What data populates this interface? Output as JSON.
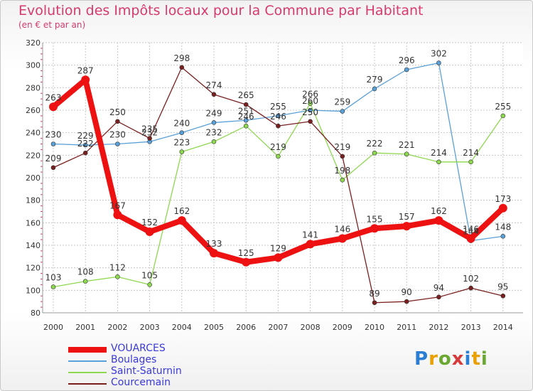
{
  "title": "Evolution des Impôts locaux pour la Commune par Habitant",
  "subtitle": "(en € et par an)",
  "logo": [
    "P",
    "r",
    "o",
    "x",
    "i",
    "t",
    "i"
  ],
  "logo_colors": [
    "#2a7fd4",
    "#e9a000",
    "#6aa832",
    "#d63a3a",
    "#2a7fd4",
    "#e9a000",
    "#6aa832"
  ],
  "chart_data": {
    "type": "line",
    "title": "Evolution des Impôts locaux pour la Commune par Habitant",
    "ylabel": "(en € et par an)",
    "x": [
      "2000",
      "2001",
      "2002",
      "2003",
      "2004",
      "2005",
      "2006",
      "2007",
      "2008",
      "2009",
      "2010",
      "2011",
      "2012",
      "2013",
      "2014"
    ],
    "ylim": [
      80,
      320
    ],
    "yticks": [
      80,
      100,
      120,
      140,
      160,
      180,
      200,
      220,
      240,
      260,
      280,
      300,
      320
    ],
    "grid": true,
    "series": [
      {
        "name": "VOUARCES",
        "color": "#ee1111",
        "values": [
          263,
          287,
          167,
          152,
          162,
          133,
          125,
          129,
          141,
          146,
          155,
          157,
          162,
          146,
          173
        ]
      },
      {
        "name": "Boulages",
        "color": "#5aa0d8",
        "values": [
          230,
          229,
          230,
          232,
          240,
          249,
          251,
          255,
          260,
          259,
          279,
          296,
          302,
          144,
          148
        ]
      },
      {
        "name": "Saint-Saturnin",
        "color": "#8ed850",
        "values": [
          103,
          108,
          112,
          105,
          223,
          232,
          246,
          219,
          266,
          198,
          222,
          221,
          214,
          214,
          255
        ]
      },
      {
        "name": "Courcemain",
        "color": "#7a1f1f",
        "values": [
          209,
          222,
          250,
          235,
          298,
          274,
          265,
          246,
          250,
          219,
          89,
          90,
          94,
          102,
          95
        ]
      }
    ]
  }
}
